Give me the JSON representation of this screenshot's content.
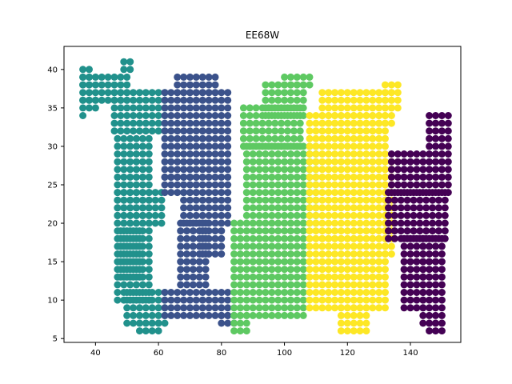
{
  "chart_data": {
    "type": "scatter",
    "title": "EE68W",
    "xlabel": "",
    "ylabel": "",
    "xlim": [
      30,
      156
    ],
    "ylim": [
      4.5,
      43
    ],
    "xticks": [
      40,
      60,
      80,
      100,
      120,
      140
    ],
    "yticks": [
      5,
      10,
      15,
      20,
      25,
      30,
      35,
      40
    ],
    "grid": false,
    "legend": "none",
    "colors": [
      "#21918c",
      "#3b528b",
      "#5ec962",
      "#fde725",
      "#440154"
    ],
    "series": [
      {
        "color": "#21918c",
        "rects": [
          [
            36,
            39,
            38,
            40
          ],
          [
            36,
            51,
            36,
            39
          ],
          [
            36,
            40,
            35,
            36
          ],
          [
            36,
            36,
            34,
            34
          ],
          [
            46,
            62,
            32,
            37
          ],
          [
            49,
            51,
            40,
            41
          ],
          [
            47,
            57,
            10,
            31
          ],
          [
            50,
            62,
            7,
            11
          ],
          [
            54,
            60,
            6,
            7
          ],
          [
            47,
            62,
            20,
            24
          ],
          [
            48,
            55,
            13,
            19
          ]
        ]
      },
      {
        "color": "#3b528b",
        "rects": [
          [
            62,
            82,
            26,
            37
          ],
          [
            66,
            78,
            37,
            39
          ],
          [
            68,
            82,
            20,
            25
          ],
          [
            62,
            82,
            8,
            11
          ],
          [
            67,
            76,
            12,
            20
          ],
          [
            74,
            80,
            16,
            20
          ],
          [
            62,
            72,
            24,
            26
          ],
          [
            80,
            84,
            7,
            8
          ]
        ]
      },
      {
        "color": "#5ec962",
        "rects": [
          [
            87,
            106,
            30,
            35
          ],
          [
            94,
            106,
            34,
            38
          ],
          [
            100,
            108,
            38,
            39
          ],
          [
            88,
            110,
            20,
            30
          ],
          [
            84,
            106,
            8,
            20
          ],
          [
            84,
            88,
            6,
            8
          ]
        ]
      },
      {
        "color": "#fde725",
        "rects": [
          [
            108,
            132,
            18,
            34
          ],
          [
            112,
            134,
            33,
            37
          ],
          [
            132,
            136,
            35,
            38
          ],
          [
            108,
            132,
            9,
            18
          ],
          [
            118,
            126,
            6,
            9
          ],
          [
            132,
            134,
            16,
            28
          ]
        ]
      },
      {
        "color": "#440154",
        "rects": [
          [
            133,
            152,
            18,
            24
          ],
          [
            134,
            144,
            24,
            29
          ],
          [
            138,
            144,
            9,
            18
          ],
          [
            144,
            150,
            7,
            18
          ],
          [
            146,
            152,
            24,
            34
          ],
          [
            146,
            150,
            6,
            7
          ]
        ]
      }
    ]
  }
}
